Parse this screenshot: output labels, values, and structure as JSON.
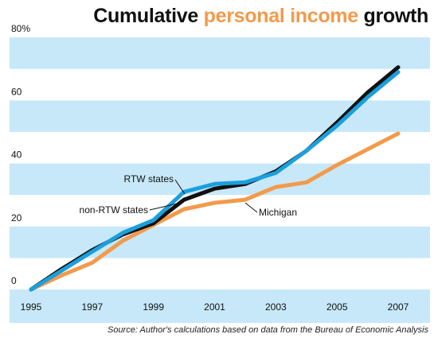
{
  "title": {
    "part1": "Cumulative ",
    "accent": "personal income",
    "part2": " growth"
  },
  "source": "Source: Author's calculations based on data from the Bureau of Economic Analysis",
  "colors": {
    "band": "#c7e8f8",
    "rtw": "#1b9fde",
    "non_rtw": "#111111",
    "michigan": "#f39a4b",
    "accent": "#f39a4b"
  },
  "chart_data": {
    "type": "line",
    "x": [
      1995,
      1996,
      1997,
      1998,
      1999,
      2000,
      2001,
      2002,
      2003,
      2004,
      2005,
      2006,
      2007
    ],
    "xlim": [
      1995,
      2007
    ],
    "ylim": [
      0,
      80
    ],
    "x_ticks": [
      "1995",
      "1997",
      "1999",
      "2001",
      "2003",
      "2005",
      "2007"
    ],
    "y_ticks": [
      "0",
      "20",
      "40",
      "60",
      "80%"
    ],
    "grid": "alternating horizontal bands",
    "series": [
      {
        "name": "RTW states",
        "color": "#1b9fde",
        "values": [
          0,
          6,
          12,
          18,
          22,
          31,
          33.5,
          34,
          37,
          44,
          52,
          61,
          69
        ]
      },
      {
        "name": "non-RTW states",
        "color": "#111111",
        "values": [
          0,
          6.5,
          12.5,
          17.5,
          21,
          28.5,
          32,
          33.5,
          37.5,
          44,
          53,
          62.5,
          70.5
        ]
      },
      {
        "name": "Michigan",
        "color": "#f39a4b",
        "values": [
          0,
          4.5,
          8.5,
          15.5,
          20.5,
          25.5,
          27.5,
          28.5,
          32.5,
          34,
          39.5,
          44.5,
          49.5
        ]
      }
    ]
  }
}
